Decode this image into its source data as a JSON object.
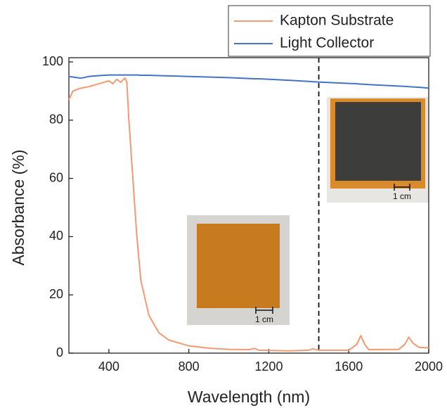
{
  "chart_data": {
    "type": "line",
    "x": [
      200,
      220,
      260,
      300,
      350,
      400,
      420,
      440,
      460,
      480,
      490,
      500,
      520,
      540,
      560,
      600,
      650,
      700,
      800,
      900,
      1000,
      1100,
      1130,
      1150,
      1300,
      1400,
      1420,
      1450,
      1600,
      1640,
      1660,
      1680,
      1700,
      1850,
      1880,
      1900,
      1920,
      1950,
      2000
    ],
    "series": [
      {
        "name": "Kapton Substrate",
        "color": "#f39a70",
        "values": [
          87,
          90,
          91,
          91.5,
          92.5,
          93.5,
          92.5,
          94,
          93,
          94.5,
          93,
          80,
          60,
          40,
          25,
          13,
          7,
          4.5,
          2.5,
          1.7,
          1.3,
          1.2,
          1.6,
          1,
          0.8,
          1,
          1.5,
          1,
          1,
          3,
          6,
          3,
          1.2,
          1.3,
          3,
          5.5,
          3.5,
          2,
          1.8
        ]
      },
      {
        "name": "Light Collector",
        "color": "#4472c4",
        "values": [
          95,
          94.8,
          94.4,
          95,
          95.3,
          95.5,
          95.5,
          95.5,
          95.5,
          95.5,
          95.5,
          95.5,
          95.5,
          95.5,
          95.4,
          95.4,
          95.3,
          95.2,
          95,
          94.8,
          94.6,
          94.3,
          94.2,
          94.2,
          93.7,
          93.3,
          93.2,
          93.1,
          92.6,
          92.5,
          92.4,
          92.3,
          92.2,
          91.7,
          91.6,
          91.5,
          91.4,
          91.3,
          91
        ]
      }
    ],
    "x_label": "Wavelength (nm)",
    "y_label": "Absorbance (%)",
    "xlim": [
      200,
      2000
    ],
    "xticks": [
      400,
      800,
      1200,
      1600,
      2000
    ],
    "ylim": [
      0,
      100
    ],
    "yticks": [
      0,
      20,
      40,
      60,
      80,
      100
    ],
    "vline": 1450,
    "annotations": [
      "1 cm",
      "1 cm"
    ],
    "legend": "top-right"
  }
}
